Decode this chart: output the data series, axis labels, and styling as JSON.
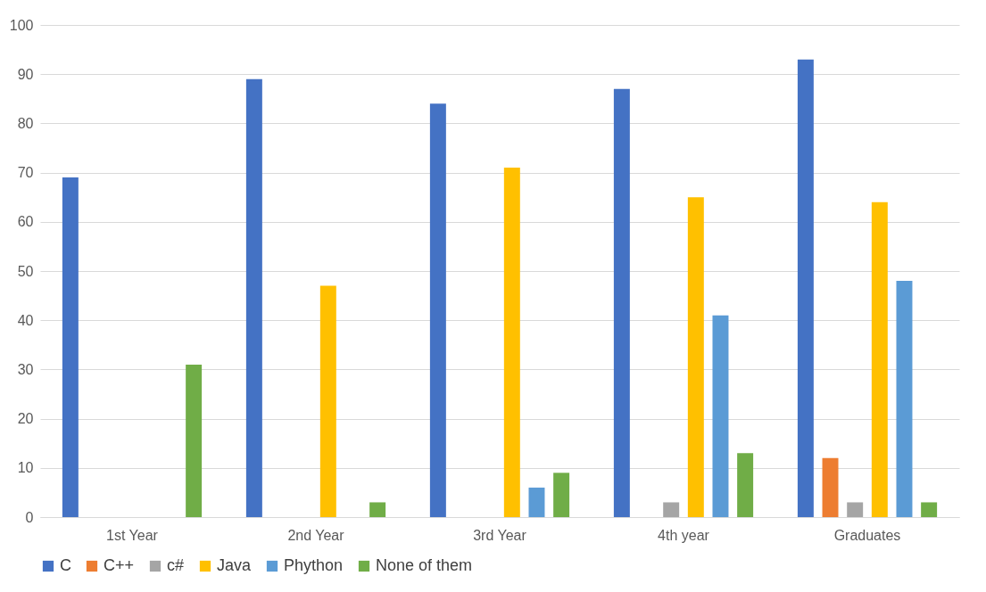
{
  "chart_data": {
    "type": "bar",
    "categories": [
      "1st Year",
      "2nd Year",
      "3rd Year",
      "4th year",
      "Graduates"
    ],
    "series": [
      {
        "name": "C",
        "color": "#4472c4",
        "values": [
          69,
          89,
          84,
          87,
          93
        ]
      },
      {
        "name": "C++",
        "color": "#ed7d31",
        "values": [
          0,
          0,
          0,
          0,
          12
        ]
      },
      {
        "name": "c#",
        "color": "#a5a5a5",
        "values": [
          0,
          0,
          0,
          3,
          3
        ]
      },
      {
        "name": "Java",
        "color": "#ffc000",
        "values": [
          0,
          47,
          71,
          65,
          64
        ]
      },
      {
        "name": "Phython",
        "color": "#5b9bd5",
        "values": [
          0,
          0,
          6,
          41,
          48
        ]
      },
      {
        "name": "None of them",
        "color": "#70ad47",
        "values": [
          31,
          3,
          9,
          13,
          3
        ]
      }
    ],
    "ylim": [
      0,
      100
    ],
    "yticks": [
      0,
      10,
      20,
      30,
      40,
      50,
      60,
      70,
      80,
      90,
      100
    ],
    "grid": "y",
    "legend": "bottom"
  }
}
